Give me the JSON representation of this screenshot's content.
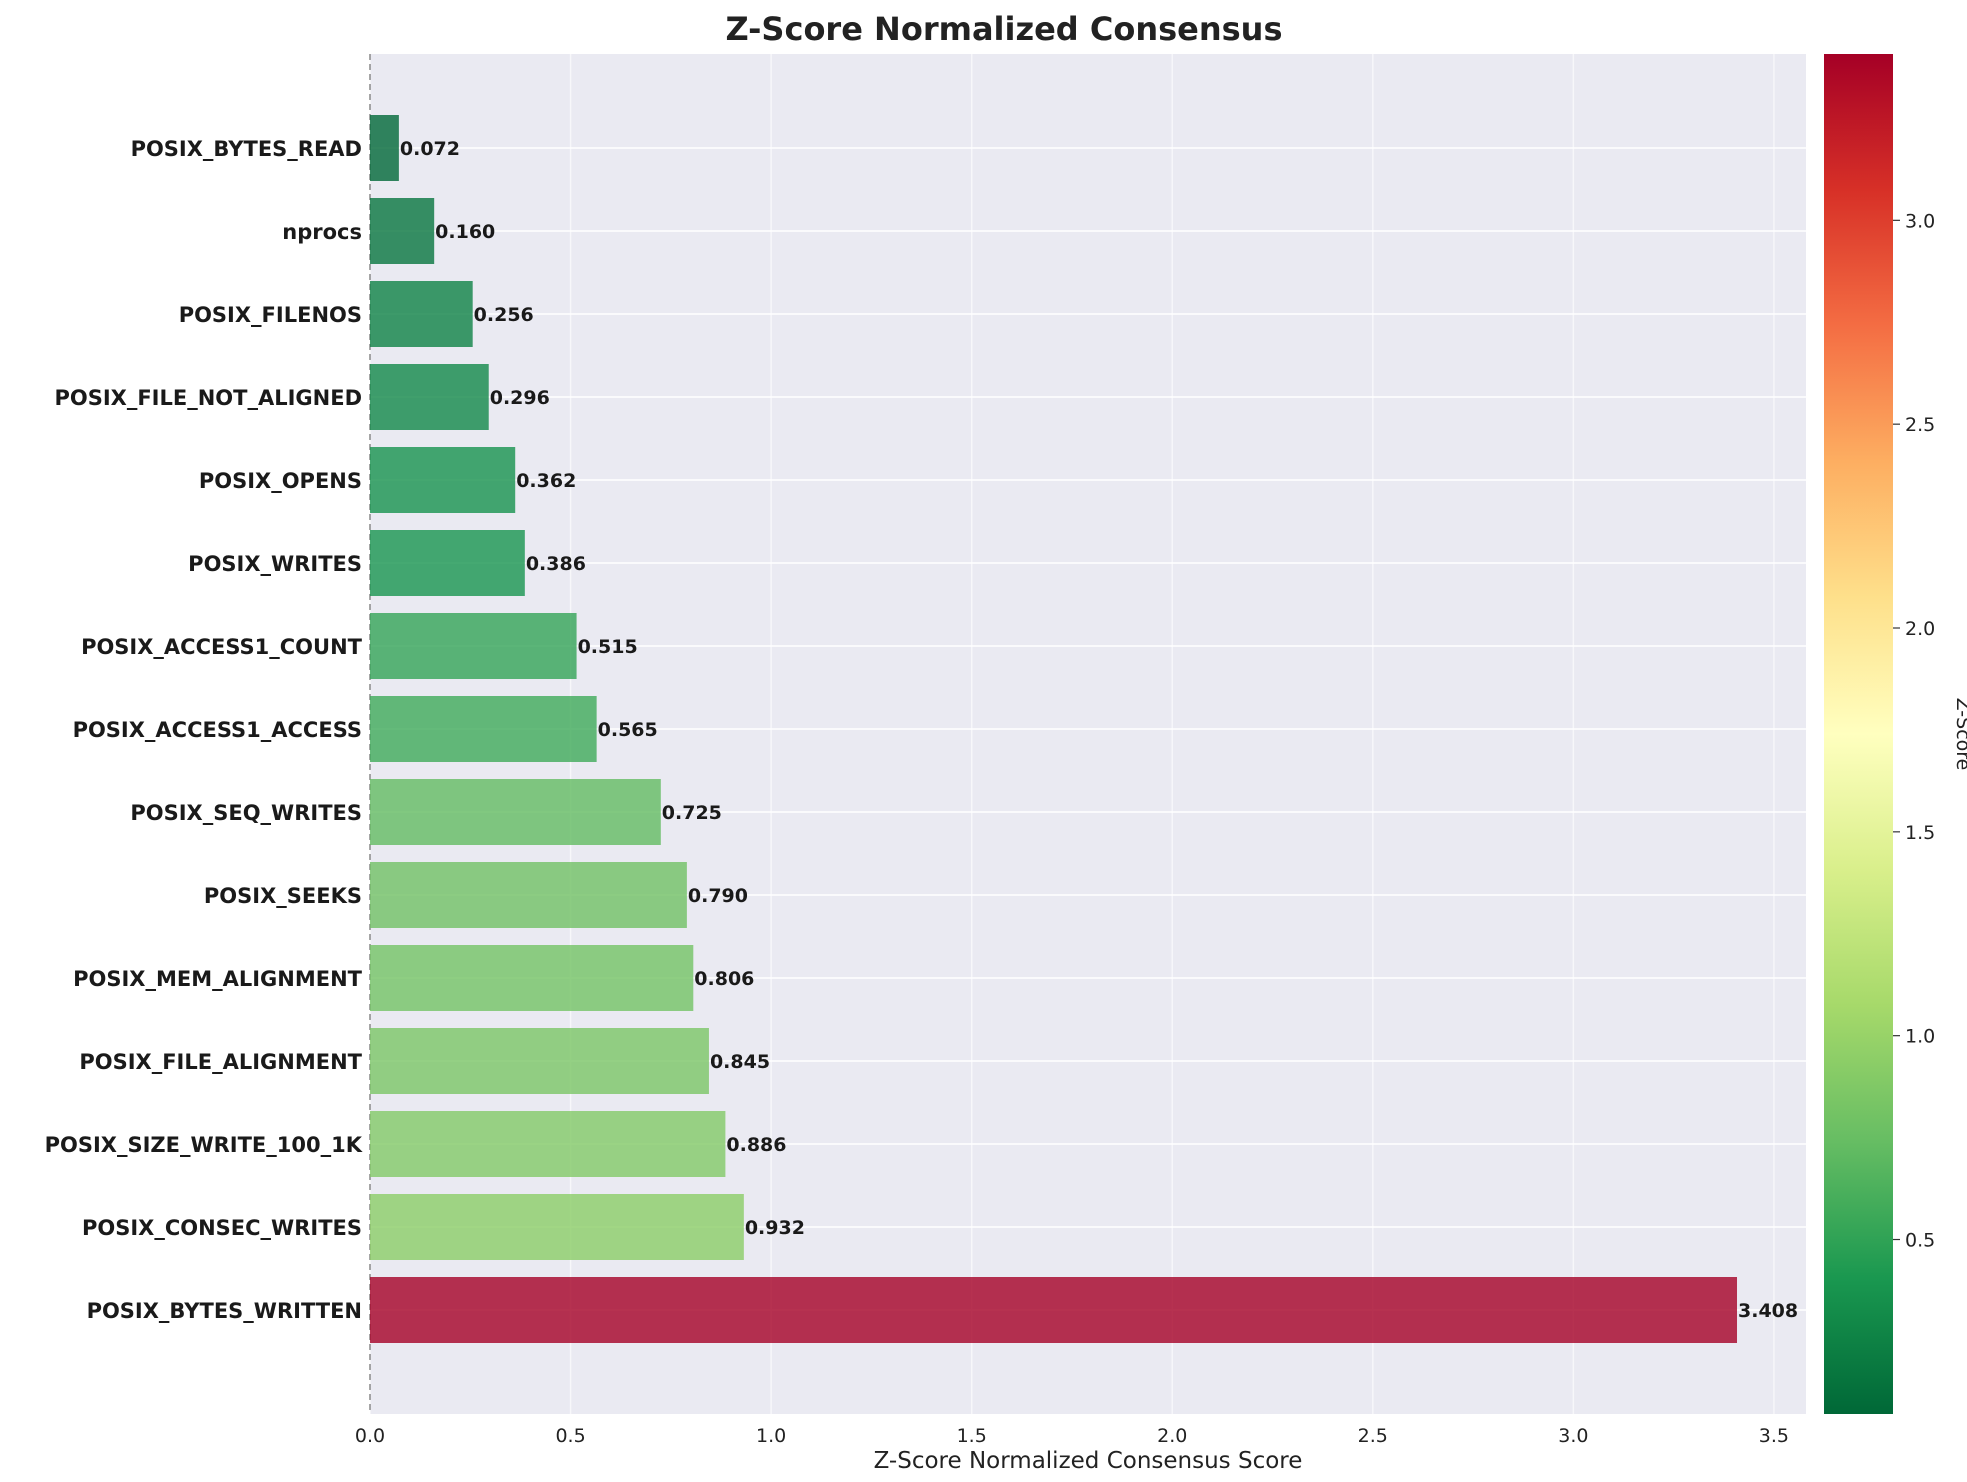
{
  "chart_data": {
    "type": "bar",
    "orientation": "horizontal",
    "title": "Z-Score Normalized Consensus",
    "xlabel": "Z-Score Normalized Consensus Score",
    "ylabel": "",
    "xlim": [
      0.0,
      3.58
    ],
    "xticks": [
      "0.0",
      "0.5",
      "1.0",
      "1.5",
      "2.0",
      "2.5",
      "3.0",
      "3.5"
    ],
    "grid": true,
    "categories": [
      "POSIX_BYTES_READ",
      "nprocs",
      "POSIX_FILENOS",
      "POSIX_FILE_NOT_ALIGNED",
      "POSIX_OPENS",
      "POSIX_WRITES",
      "POSIX_ACCESS1_COUNT",
      "POSIX_ACCESS1_ACCESS",
      "POSIX_SEQ_WRITES",
      "POSIX_SEEKS",
      "POSIX_MEM_ALIGNMENT",
      "POSIX_FILE_ALIGNMENT",
      "POSIX_SIZE_WRITE_100_1K",
      "POSIX_CONSEC_WRITES",
      "POSIX_BYTES_WRITTEN"
    ],
    "values": [
      0.072,
      0.16,
      0.256,
      0.296,
      0.362,
      0.386,
      0.515,
      0.565,
      0.725,
      0.79,
      0.806,
      0.845,
      0.886,
      0.932,
      3.408
    ],
    "value_labels": [
      "0.072",
      "0.160",
      "0.256",
      "0.296",
      "0.362",
      "0.386",
      "0.515",
      "0.565",
      "0.725",
      "0.790",
      "0.806",
      "0.845",
      "0.886",
      "0.932",
      "3.408"
    ],
    "colormap": "RdYlGn_r",
    "colorbar": {
      "label": "Z-Score",
      "range": [
        0.072,
        3.408
      ],
      "ticks": [
        "0.5",
        "1.0",
        "1.5",
        "2.0",
        "2.5",
        "3.0"
      ]
    },
    "reference_line_x": 0.0
  },
  "colors": {
    "plot_background": "#eaeaf2",
    "grid": "#ffffff",
    "reference_line": "#888888"
  }
}
